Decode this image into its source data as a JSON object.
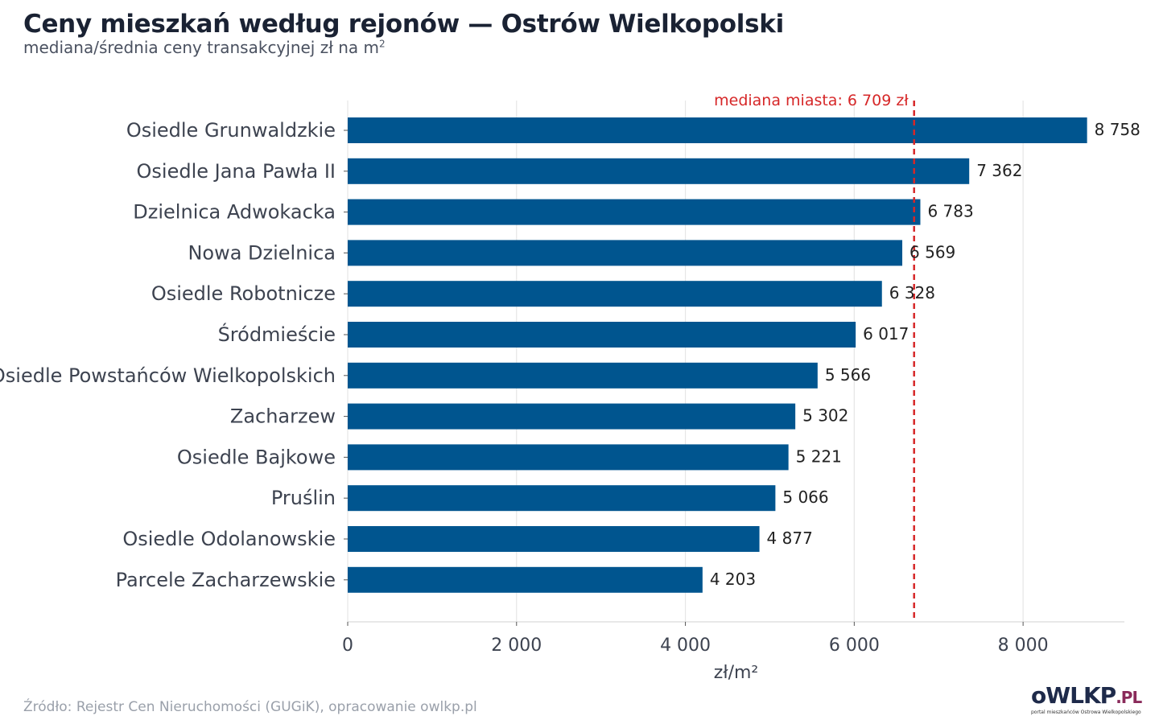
{
  "page": {
    "title": "Ceny mieszkań według rejonów — Ostrów Wielkopolski",
    "subtitle": "mediana/średnia ceny transakcyjnej zł na m",
    "subtitle_sup": "2",
    "source": "Źródło: Rejestr Cen Nieruchomości (GUGiK), opracowanie owlkp.pl"
  },
  "logo": {
    "text_main": "oWLKP",
    "text_tld": ".PL",
    "tagline": "portal mieszkańców Ostrowa Wielkopolskiego"
  },
  "chart_data": {
    "type": "bar",
    "orientation": "horizontal",
    "categories": [
      "Osiedle Grunwaldzkie",
      "Osiedle Jana Pawła II",
      "Dzielnica Adwokacka",
      "Nowa Dzielnica",
      "Osiedle Robotnicze",
      "Śródmieście",
      "Osiedle Powstańców Wielkopolskich",
      "Zacharzew",
      "Osiedle Bajkowe",
      "Pruślin",
      "Osiedle Odolanowskie",
      "Parcele Zacharzewskie"
    ],
    "values": [
      8758,
      7362,
      6783,
      6569,
      6328,
      6017,
      5566,
      5302,
      5221,
      5066,
      4877,
      4203
    ],
    "value_labels": [
      "8 758",
      "7 362",
      "6 783",
      "6 569",
      "6 328",
      "6 017",
      "5 566",
      "5 302",
      "5 221",
      "5 066",
      "4 877",
      "4 203"
    ],
    "xlabel": "zł/m²",
    "ylabel": "",
    "xlim": [
      0,
      9200
    ],
    "xticks": [
      0,
      2000,
      4000,
      6000,
      8000
    ],
    "xtick_labels": [
      "0",
      "2 000",
      "4 000",
      "6 000",
      "8 000"
    ],
    "grid": "vertical",
    "reference_line": {
      "value": 6709,
      "label": "mediana miasta: 6 709 zł",
      "color": "#d62728",
      "style": "dashed"
    },
    "bar_color": "#00558f"
  }
}
